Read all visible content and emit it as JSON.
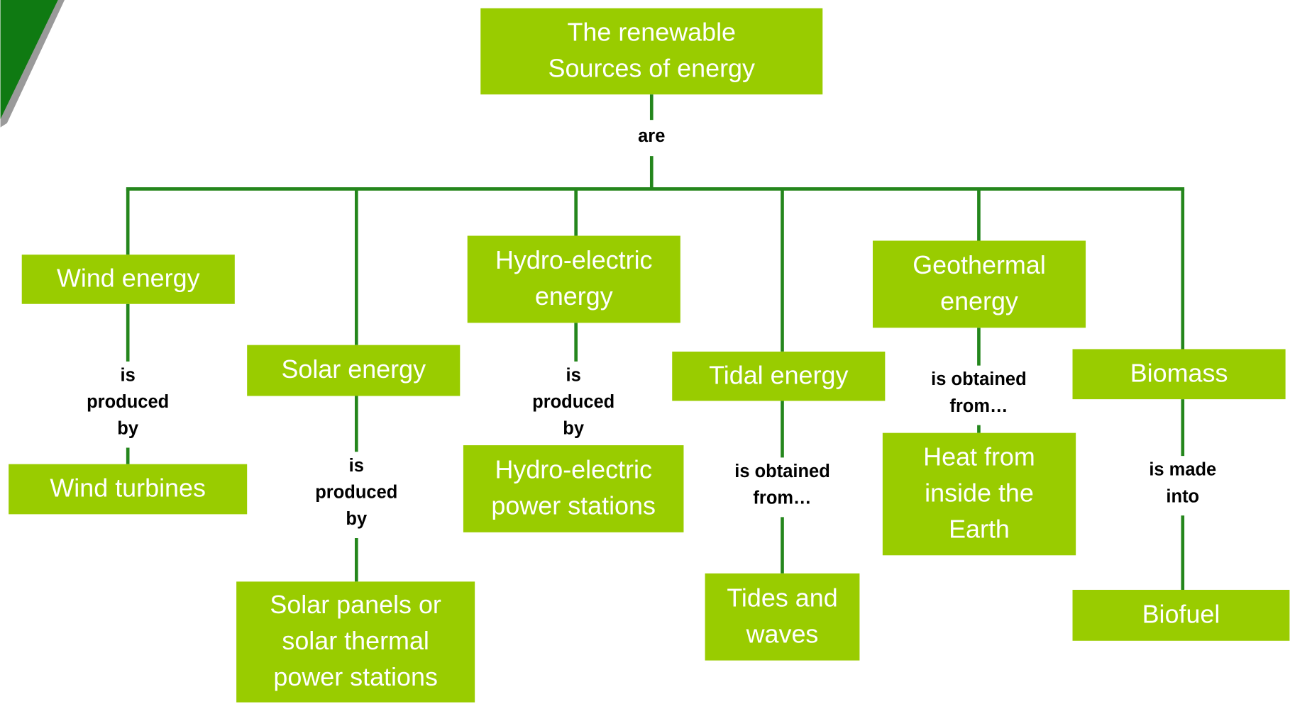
{
  "root": {
    "lines": [
      "The renewable",
      "Sources of energy"
    ],
    "relation": [
      "are"
    ]
  },
  "branches": [
    {
      "source": [
        "Wind energy"
      ],
      "relation": [
        "is",
        "produced",
        "by"
      ],
      "target": [
        "Wind turbines"
      ]
    },
    {
      "source": [
        "Solar energy"
      ],
      "relation": [
        "is",
        "produced",
        "by"
      ],
      "target": [
        "Solar panels or",
        "solar thermal",
        "power stations"
      ]
    },
    {
      "source": [
        "Hydro-electric",
        "energy"
      ],
      "relation": [
        "is",
        "produced",
        "by"
      ],
      "target": [
        "Hydro-electric",
        "power stations"
      ]
    },
    {
      "source": [
        "Tidal energy"
      ],
      "relation": [
        "is obtained",
        "from…"
      ],
      "target": [
        "Tides and",
        "waves"
      ]
    },
    {
      "source": [
        "Geothermal",
        "energy"
      ],
      "relation": [
        "is obtained",
        "from…"
      ],
      "target": [
        "Heat from",
        "inside the",
        "Earth"
      ]
    },
    {
      "source": [
        "Biomass"
      ],
      "relation": [
        "is made",
        "into"
      ],
      "target": [
        "Biofuel"
      ]
    }
  ]
}
